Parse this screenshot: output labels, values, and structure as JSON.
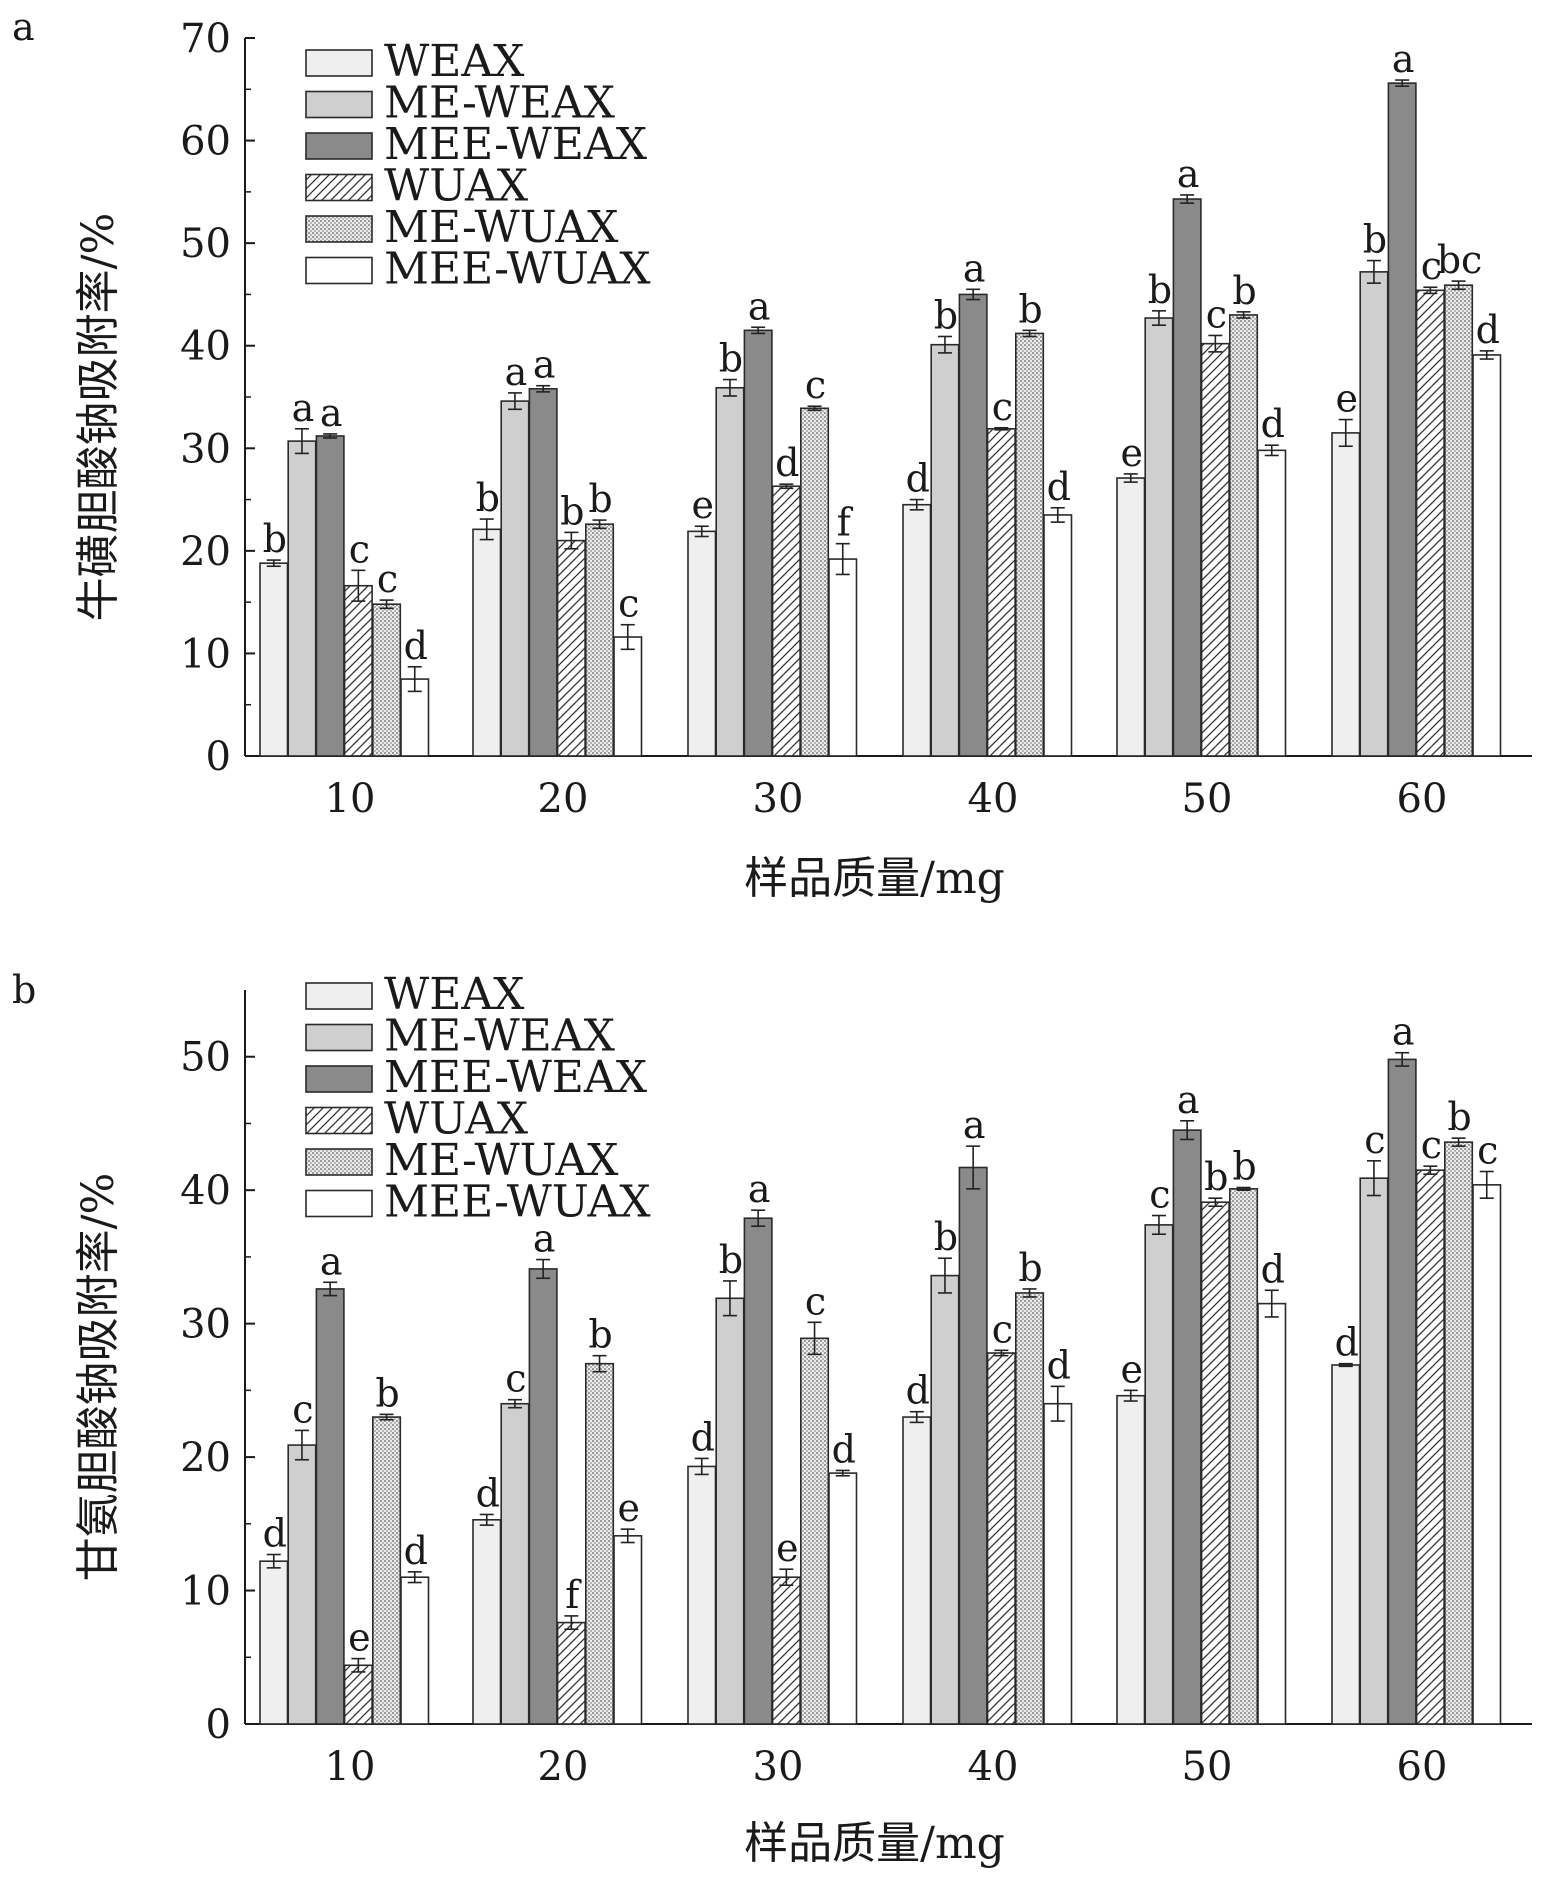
{
  "categories": [
    "10",
    "20",
    "30",
    "40",
    "50",
    "60"
  ],
  "chart_data": [
    {
      "type": "bar",
      "panel_label": "a",
      "title": "",
      "xlabel": "样品质量/mg",
      "ylabel": "牛磺胆酸钠吸附率/%",
      "ylim": [
        0,
        70
      ],
      "yticks": [
        0,
        10,
        20,
        30,
        40,
        50,
        60,
        70
      ],
      "legend_position": "top-left",
      "categories": [
        "10",
        "20",
        "30",
        "40",
        "50",
        "60"
      ],
      "series": [
        {
          "name": "WEAX",
          "values": [
            18.8,
            22.1,
            21.9,
            24.5,
            27.1,
            31.5
          ],
          "errors": [
            0.3,
            1.0,
            0.5,
            0.5,
            0.4,
            1.3
          ],
          "letters": [
            "b",
            "b",
            "e",
            "d",
            "e",
            "e"
          ]
        },
        {
          "name": "ME-WEAX",
          "values": [
            30.7,
            34.6,
            35.9,
            40.1,
            42.7,
            47.2
          ],
          "errors": [
            1.2,
            0.8,
            0.8,
            0.8,
            0.7,
            1.1
          ],
          "letters": [
            "a",
            "a",
            "b",
            "b",
            "b",
            "b"
          ]
        },
        {
          "name": "MEE-WEAX",
          "values": [
            31.2,
            35.8,
            41.5,
            45.0,
            54.3,
            65.6
          ],
          "errors": [
            0.2,
            0.3,
            0.3,
            0.5,
            0.4,
            0.3
          ],
          "letters": [
            "a",
            "a",
            "a",
            "a",
            "a",
            "a"
          ]
        },
        {
          "name": "WUAX",
          "values": [
            16.6,
            21.0,
            26.3,
            31.9,
            40.2,
            45.4
          ],
          "errors": [
            1.5,
            0.8,
            0.2,
            0.1,
            0.8,
            0.3
          ],
          "letters": [
            "c",
            "b",
            "d",
            "c",
            "c",
            "c"
          ]
        },
        {
          "name": "ME-WUAX",
          "values": [
            14.8,
            22.6,
            33.9,
            41.2,
            43.0,
            45.9
          ],
          "errors": [
            0.4,
            0.4,
            0.2,
            0.3,
            0.3,
            0.4
          ],
          "letters": [
            "c",
            "b",
            "c",
            "b",
            "b",
            "bc"
          ]
        },
        {
          "name": "MEE-WUAX",
          "values": [
            7.5,
            11.6,
            19.2,
            23.5,
            29.8,
            39.1
          ],
          "errors": [
            1.2,
            1.2,
            1.5,
            0.7,
            0.5,
            0.4
          ],
          "letters": [
            "d",
            "c",
            "f",
            "d",
            "d",
            "d"
          ]
        }
      ]
    },
    {
      "type": "bar",
      "panel_label": "b",
      "title": "",
      "xlabel": "样品质量/mg",
      "ylabel": "甘氨胆酸钠吸附率/%",
      "ylim": [
        0,
        55
      ],
      "yticks": [
        0,
        10,
        20,
        30,
        40,
        50
      ],
      "legend_position": "top-left",
      "categories": [
        "10",
        "20",
        "30",
        "40",
        "50",
        "60"
      ],
      "series": [
        {
          "name": "WEAX",
          "values": [
            12.2,
            15.3,
            19.3,
            23.0,
            24.6,
            26.9
          ],
          "errors": [
            0.5,
            0.4,
            0.6,
            0.4,
            0.4,
            0.1
          ],
          "letters": [
            "d",
            "d",
            "d",
            "d",
            "e",
            "d"
          ]
        },
        {
          "name": "ME-WEAX",
          "values": [
            20.9,
            24.0,
            31.9,
            33.6,
            37.4,
            40.9
          ],
          "errors": [
            1.1,
            0.3,
            1.3,
            1.3,
            0.7,
            1.3
          ],
          "letters": [
            "c",
            "c",
            "b",
            "b",
            "c",
            "c"
          ]
        },
        {
          "name": "MEE-WEAX",
          "values": [
            32.6,
            34.1,
            37.9,
            41.7,
            44.5,
            49.8
          ],
          "errors": [
            0.5,
            0.7,
            0.6,
            1.6,
            0.7,
            0.5
          ],
          "letters": [
            "a",
            "a",
            "a",
            "a",
            "a",
            "a"
          ]
        },
        {
          "name": "WUAX",
          "values": [
            4.4,
            7.6,
            11.0,
            27.8,
            39.1,
            41.5
          ],
          "errors": [
            0.5,
            0.5,
            0.6,
            0.2,
            0.3,
            0.3
          ],
          "letters": [
            "e",
            "f",
            "e",
            "c",
            "b",
            "c"
          ]
        },
        {
          "name": "ME-WUAX",
          "values": [
            23.0,
            27.0,
            28.9,
            32.3,
            40.1,
            43.6
          ],
          "errors": [
            0.2,
            0.6,
            1.2,
            0.3,
            0.1,
            0.3
          ],
          "letters": [
            "b",
            "b",
            "c",
            "b",
            "b",
            "b"
          ]
        },
        {
          "name": "MEE-WUAX",
          "values": [
            11.0,
            14.1,
            18.8,
            24.0,
            31.5,
            40.4
          ],
          "errors": [
            0.4,
            0.5,
            0.2,
            1.3,
            1.0,
            1.0
          ],
          "letters": [
            "d",
            "e",
            "d",
            "d",
            "d",
            "c"
          ]
        }
      ]
    }
  ],
  "styles": [
    {
      "series": "WEAX",
      "fill": "#efefef",
      "pattern": "solid"
    },
    {
      "series": "ME-WEAX",
      "fill": "#cfcfcf",
      "pattern": "solid"
    },
    {
      "series": "MEE-WEAX",
      "fill": "#8a8a8a",
      "pattern": "solid"
    },
    {
      "series": "WUAX",
      "fill": "#ffffff",
      "pattern": "diagonal-hatch"
    },
    {
      "series": "ME-WUAX",
      "fill": "#ececec",
      "pattern": "dotted"
    },
    {
      "series": "MEE-WUAX",
      "fill": "#ffffff",
      "pattern": "solid"
    }
  ],
  "colors": {
    "axis": "#1a1a1a",
    "bar_outline": "#2a2a2a",
    "background": "#ffffff"
  }
}
